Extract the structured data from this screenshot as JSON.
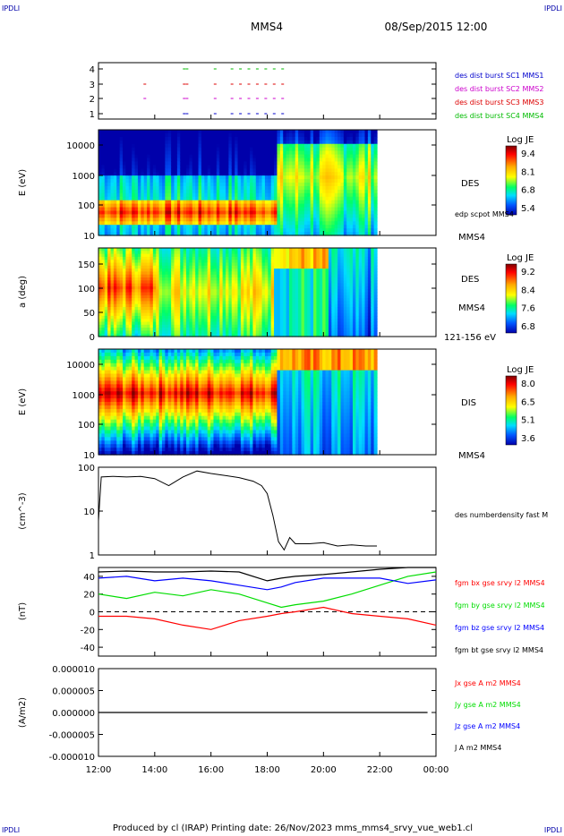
{
  "header": {
    "corner_left": "IPDLI",
    "corner_right": "IPDLI",
    "spacecraft": "MMS4",
    "datetime": "08/Sep/2015 12:00"
  },
  "footer": {
    "text": "Produced by cl (IRAP)   Printing date: 26/Nov/2023   mms_mms4_srvy_vue_web1.cl",
    "corner_left": "IPDLI",
    "corner_right": "IPDLI"
  },
  "time_axis": {
    "ticks": [
      "12:00",
      "14:00",
      "16:00",
      "18:00",
      "20:00",
      "22:00",
      "00:00"
    ],
    "start_hour": 12,
    "end_hour": 24
  },
  "colors": {
    "mms1": "#0000cc",
    "mms2": "#cc00cc",
    "mms3": "#dd0000",
    "mms4": "#00bb00",
    "bx": "#ff0000",
    "by": "#00dd00",
    "bz": "#0000ff",
    "bt": "#000000"
  },
  "chart_data": [
    {
      "type": "scatter",
      "id": "burst",
      "yticks": [
        "1",
        "2",
        "3",
        "4"
      ],
      "legend": [
        {
          "label": "des dist burst SC1 MMS1",
          "color": "#0000cc"
        },
        {
          "label": "des dist burst SC2 MMS2",
          "color": "#cc00cc"
        },
        {
          "label": "des dist burst SC3 MMS3",
          "color": "#dd0000"
        },
        {
          "label": "des dist burst SC4 MMS4",
          "color": "#00bb00"
        }
      ],
      "burst_times": [
        13.6,
        15.0,
        15.1,
        16.1,
        16.7,
        17.0,
        17.3,
        17.6,
        17.9,
        18.2,
        18.5
      ]
    },
    {
      "type": "heatmap",
      "id": "des_energy",
      "ylabel": "E (eV)",
      "yticks": [
        "10",
        "100",
        "1000",
        "10000"
      ],
      "colorbar_title": "Log JE",
      "colorbar_ticks": [
        "9.4",
        "8.1",
        "6.8",
        "5.4"
      ],
      "labels": [
        "DES",
        "edp scpot MMS4",
        "MMS4"
      ]
    },
    {
      "type": "heatmap",
      "id": "des_pitch",
      "ylabel": "a (deg)",
      "yticks": [
        "0",
        "50",
        "100",
        "150"
      ],
      "colorbar_title": "Log JE",
      "colorbar_ticks": [
        "9.2",
        "8.4",
        "7.6",
        "6.8"
      ],
      "labels": [
        "DES",
        "MMS4",
        "121-156 eV"
      ]
    },
    {
      "type": "heatmap",
      "id": "dis_energy",
      "ylabel": "E (eV)",
      "yticks": [
        "10",
        "100",
        "1000",
        "10000"
      ],
      "colorbar_title": "Log JE",
      "colorbar_ticks": [
        "8.0",
        "6.5",
        "5.1",
        "3.6"
      ],
      "labels": [
        "DIS",
        "MMS4"
      ]
    },
    {
      "type": "line",
      "id": "density",
      "ylabel": "(cm^-3)",
      "yticks": [
        "1",
        "10",
        "100"
      ],
      "legend": [
        {
          "label": "des numberdensity fast M",
          "color": "#000000"
        }
      ],
      "x": [
        12.0,
        12.1,
        12.5,
        13.0,
        13.5,
        14.0,
        14.5,
        15.0,
        15.5,
        16.0,
        16.5,
        17.0,
        17.5,
        17.8,
        18.0,
        18.2,
        18.4,
        18.6,
        18.8,
        19.0,
        19.5,
        20.0,
        20.5,
        21.0,
        21.5,
        21.9
      ],
      "y": [
        6,
        60,
        62,
        60,
        62,
        55,
        38,
        60,
        82,
        72,
        65,
        58,
        48,
        38,
        25,
        8,
        2,
        1.3,
        2.5,
        1.8,
        1.8,
        1.9,
        1.6,
        1.7,
        1.6,
        1.6
      ]
    },
    {
      "type": "line",
      "id": "bfield",
      "ylabel": "(nT)",
      "yticks": [
        "-40",
        "-20",
        "0",
        "20",
        "40"
      ],
      "legend": [
        {
          "label": "fgm bx gse srvy l2 MMS4",
          "color": "#ff0000"
        },
        {
          "label": "fgm by gse srvy l2 MMS4",
          "color": "#00dd00"
        },
        {
          "label": "fgm bz gse srvy l2 MMS4",
          "color": "#0000ff"
        },
        {
          "label": "fgm bt gse srvy l2 MMS4",
          "color": "#000000"
        }
      ],
      "x": [
        12.0,
        13.0,
        14.0,
        15.0,
        16.0,
        17.0,
        18.0,
        18.5,
        19.0,
        20.0,
        21.0,
        22.0,
        23.0,
        24.0
      ],
      "bx": [
        -5,
        -5,
        -8,
        -15,
        -20,
        -10,
        -5,
        -2,
        0,
        5,
        -2,
        -5,
        -8,
        -15
      ],
      "by": [
        20,
        15,
        22,
        18,
        25,
        20,
        10,
        5,
        8,
        12,
        20,
        30,
        40,
        45
      ],
      "bz": [
        38,
        40,
        35,
        38,
        35,
        30,
        25,
        28,
        33,
        38,
        38,
        38,
        32,
        36
      ],
      "bt": [
        45,
        46,
        45,
        45,
        46,
        45,
        35,
        38,
        40,
        42,
        45,
        48,
        50,
        50
      ]
    },
    {
      "type": "line",
      "id": "current",
      "ylabel": "(A/m2)",
      "yticks": [
        "-0.000010",
        "-0.000005",
        "0.000000",
        "0.000005",
        "0.000010"
      ],
      "legend": [
        {
          "label": "Jx gse A m2 MMS4",
          "color": "#ff0000"
        },
        {
          "label": "Jy gse A m2 MMS4",
          "color": "#00dd00"
        },
        {
          "label": "Jz gse A m2 MMS4",
          "color": "#0000ff"
        },
        {
          "label": "J A m2 MMS4",
          "color": "#000000"
        }
      ]
    }
  ]
}
